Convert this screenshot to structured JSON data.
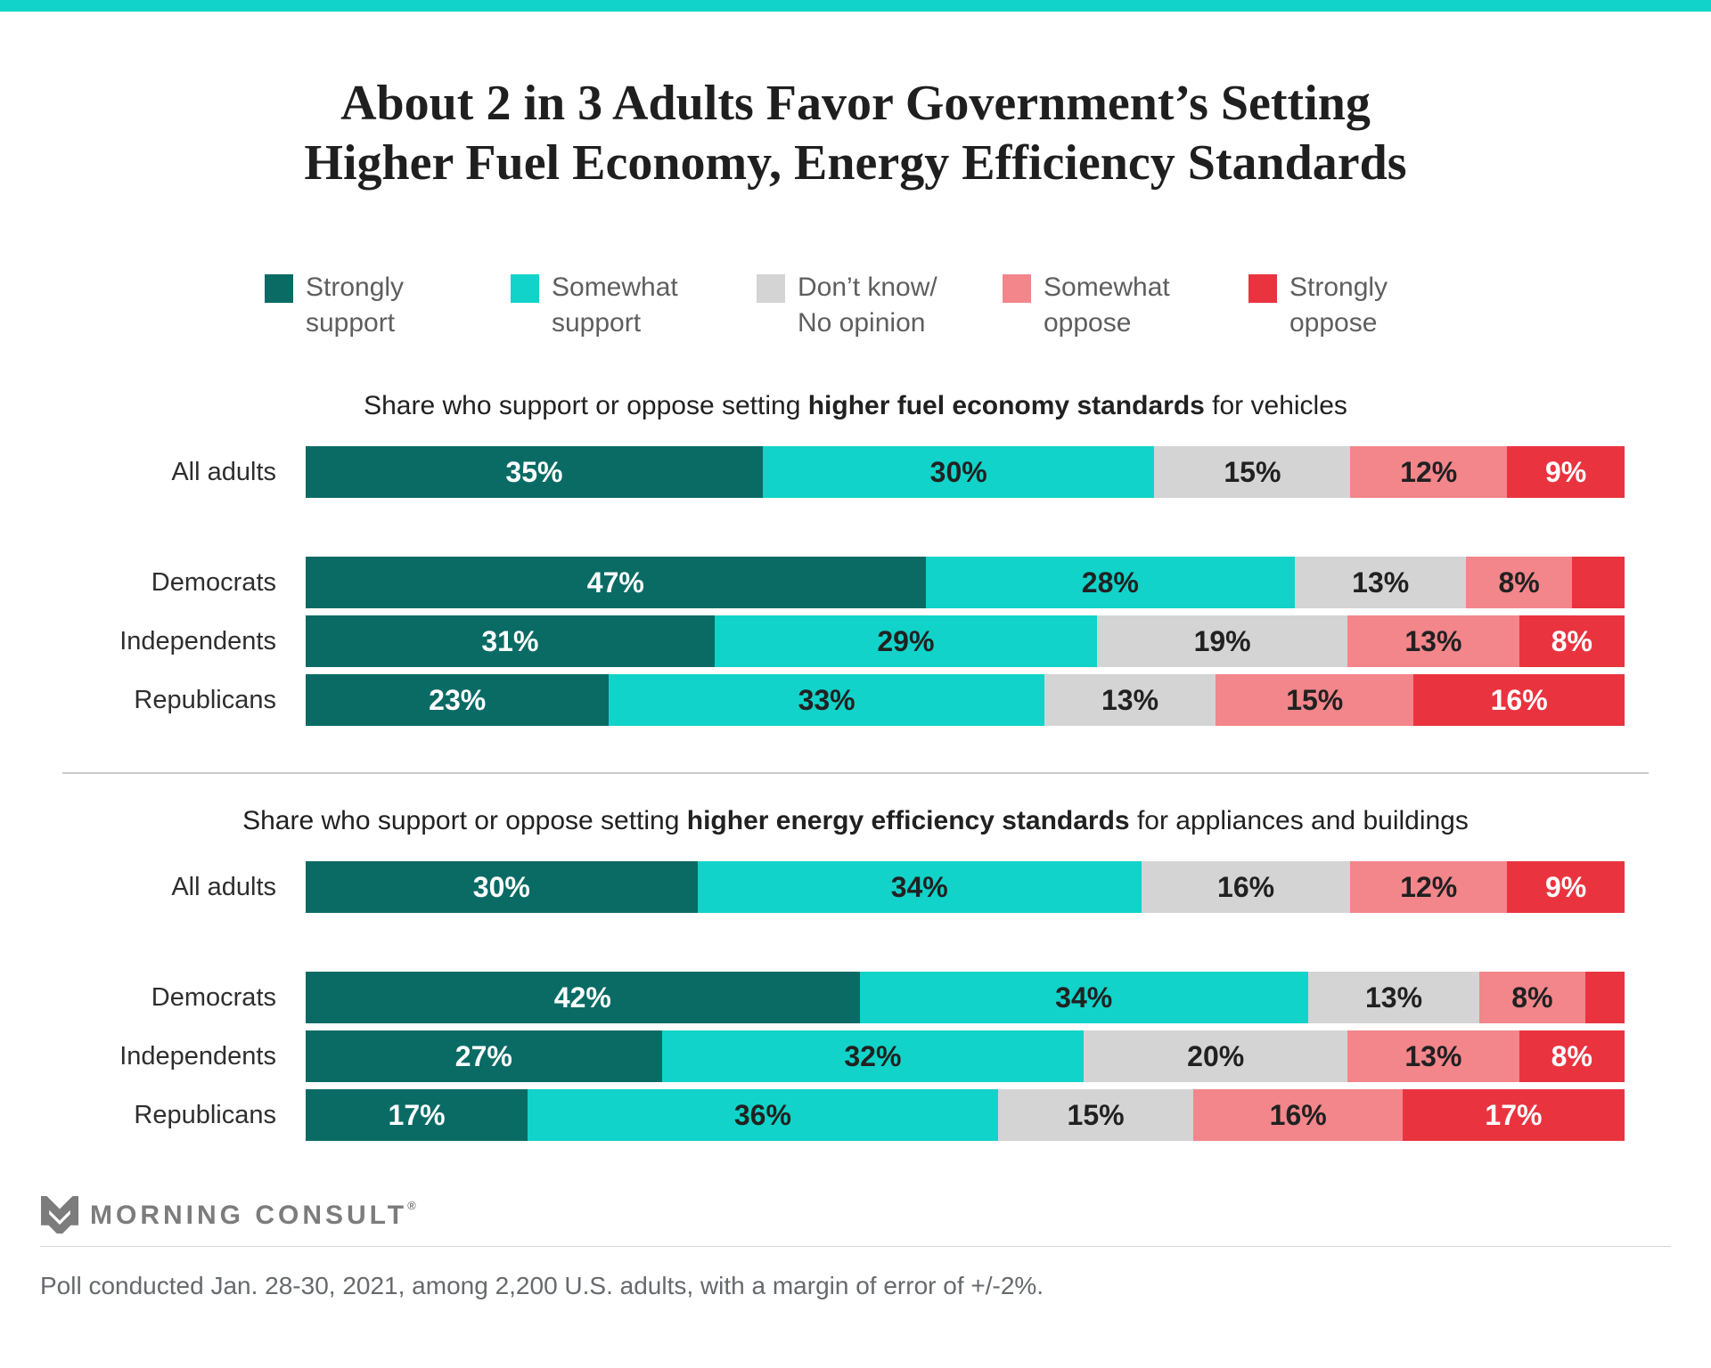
{
  "accent": {
    "topbar_color": "#11d3c9",
    "strongly_support_color": "#0a6b65",
    "somewhat_support_color": "#11d3c9",
    "dont_know_color": "#d4d4d4",
    "somewhat_oppose_color": "#f2868b",
    "strongly_oppose_color": "#e93440"
  },
  "title": {
    "line1": "About 2 in 3 Adults Favor Government’s Setting",
    "line2": "Higher Fuel Economy, Energy Efficiency Standards"
  },
  "legend": {
    "items": [
      {
        "label": "Strongly support",
        "color": "#0a6b65",
        "text_color": "#ffffff"
      },
      {
        "label": "Somewhat support",
        "color": "#11d3c9",
        "text_color": "#212121"
      },
      {
        "label": "Don’t know/ No opinion",
        "color": "#d4d4d4",
        "text_color": "#212121"
      },
      {
        "label": "Somewhat oppose",
        "color": "#f2868b",
        "text_color": "#212121"
      },
      {
        "label": "Strongly oppose",
        "color": "#e93440",
        "text_color": "#ffffff"
      }
    ]
  },
  "chart_data": [
    {
      "type": "bar",
      "stacked": true,
      "orientation": "horizontal",
      "legend_position": "top-shared",
      "xlim": [
        0,
        100
      ],
      "subtitle": {
        "prefix": "Share who support or oppose setting ",
        "bold": "higher fuel economy standards",
        "suffix": " for vehicles"
      },
      "categories": [
        "All adults",
        "Democrats",
        "Independents",
        "Republicans"
      ],
      "series_names": [
        "Strongly support",
        "Somewhat support",
        "Don’t know/No opinion",
        "Somewhat oppose",
        "Strongly oppose"
      ],
      "rows": [
        {
          "category": "All adults",
          "values": [
            35,
            30,
            15,
            12,
            9
          ],
          "labels": [
            "35%",
            "30%",
            "15%",
            "12%",
            "9%"
          ]
        },
        {
          "category": "Democrats",
          "values": [
            47,
            28,
            13,
            8,
            4
          ],
          "labels": [
            "47%",
            "28%",
            "13%",
            "8%",
            ""
          ]
        },
        {
          "category": "Independents",
          "values": [
            31,
            29,
            19,
            13,
            8
          ],
          "labels": [
            "31%",
            "29%",
            "19%",
            "13%",
            "8%"
          ]
        },
        {
          "category": "Republicans",
          "values": [
            23,
            33,
            13,
            15,
            16
          ],
          "labels": [
            "23%",
            "33%",
            "13%",
            "15%",
            "16%"
          ]
        }
      ]
    },
    {
      "type": "bar",
      "stacked": true,
      "orientation": "horizontal",
      "legend_position": "top-shared",
      "xlim": [
        0,
        100
      ],
      "subtitle": {
        "prefix": "Share who support or oppose setting ",
        "bold": "higher energy efficiency standards",
        "suffix": " for appliances and buildings"
      },
      "categories": [
        "All adults",
        "Democrats",
        "Independents",
        "Republicans"
      ],
      "series_names": [
        "Strongly support",
        "Somewhat support",
        "Don’t know/No opinion",
        "Somewhat oppose",
        "Strongly oppose"
      ],
      "rows": [
        {
          "category": "All adults",
          "values": [
            30,
            34,
            16,
            12,
            9
          ],
          "labels": [
            "30%",
            "34%",
            "16%",
            "12%",
            "9%"
          ]
        },
        {
          "category": "Democrats",
          "values": [
            42,
            34,
            13,
            8,
            3
          ],
          "labels": [
            "42%",
            "34%",
            "13%",
            "8%",
            ""
          ]
        },
        {
          "category": "Independents",
          "values": [
            27,
            32,
            20,
            13,
            8
          ],
          "labels": [
            "27%",
            "32%",
            "20%",
            "13%",
            "8%"
          ]
        },
        {
          "category": "Republicans",
          "values": [
            17,
            36,
            15,
            16,
            17
          ],
          "labels": [
            "17%",
            "36%",
            "15%",
            "16%",
            "17%"
          ]
        }
      ]
    }
  ],
  "footer": {
    "brand_name": "MORNING CONSULT",
    "registered_mark": "®",
    "source": "Poll conducted Jan. 28-30, 2021, among 2,200 U.S. adults, with a margin of error of +/-2%."
  }
}
